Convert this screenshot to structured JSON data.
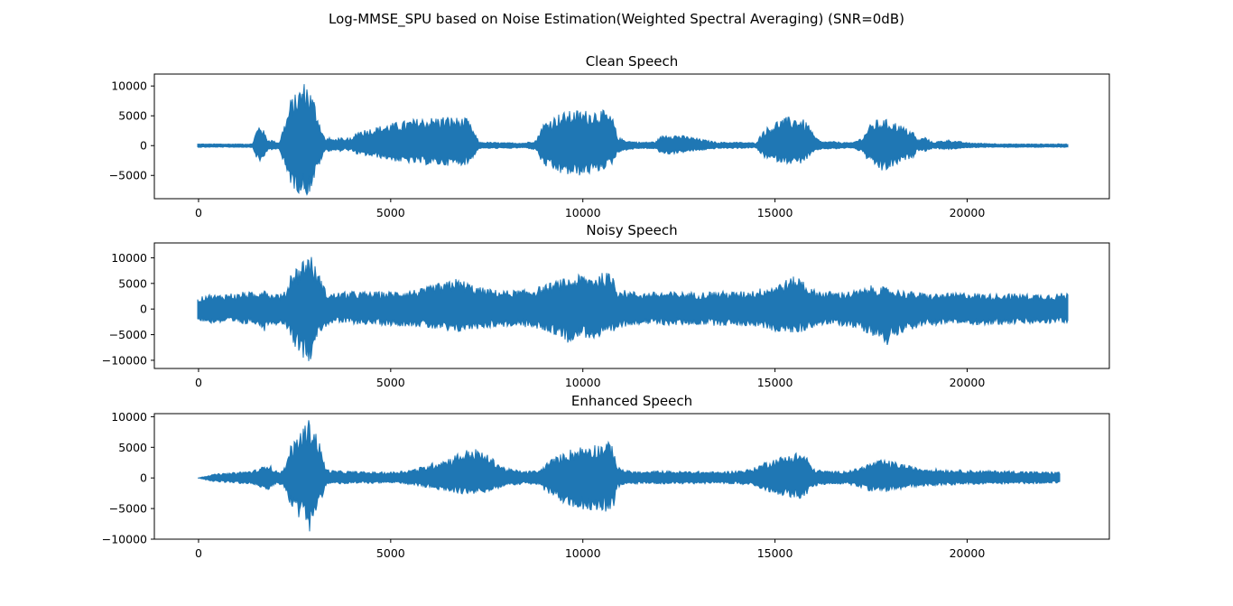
{
  "figure_title": "Log-MMSE_SPU based on Noise Estimation(Weighted Spectral Averaging) (SNR=0dB)",
  "colors": {
    "waveform": "#1f77b4",
    "axes": "#000000",
    "background": "#ffffff"
  },
  "chart_data": [
    {
      "type": "line",
      "title": "Clean Speech",
      "xlabel": "",
      "ylabel": "",
      "xlim": [
        -1150,
        23700
      ],
      "ylim": [
        -8900,
        12000
      ],
      "xticks": [
        0,
        5000,
        10000,
        15000,
        20000
      ],
      "yticks": [
        -5000,
        0,
        5000,
        10000
      ],
      "grid": false,
      "n_samples": 22600,
      "envelope": {
        "x": [
          0,
          1400,
          1500,
          1600,
          1700,
          1800,
          1900,
          2000,
          2100,
          2200,
          2300,
          2400,
          2500,
          2600,
          2700,
          2800,
          2900,
          3000,
          3100,
          3200,
          3300,
          3400,
          3500,
          3700,
          3800,
          3900,
          4000,
          4100,
          4500,
          4800,
          5000,
          5200,
          5500,
          5800,
          6100,
          6400,
          6700,
          7000,
          7200,
          7300,
          7500,
          8000,
          8500,
          8800,
          8900,
          9000,
          9200,
          9400,
          9600,
          9800,
          10000,
          10200,
          10400,
          10600,
          10800,
          10900,
          11000,
          11200,
          11500,
          11900,
          12000,
          12200,
          12500,
          12800,
          13000,
          13500,
          14000,
          14500,
          14600,
          14700,
          14900,
          15100,
          15300,
          15500,
          15700,
          15900,
          16000,
          16200,
          16500,
          17000,
          17300,
          17400,
          17600,
          17800,
          18000,
          18200,
          18400,
          18600,
          18700,
          18900,
          19100,
          19500,
          20000,
          20500,
          21000,
          21500,
          22000,
          22600
        ],
        "max": [
          300,
          300,
          2500,
          3800,
          2500,
          1000,
          1000,
          700,
          500,
          3000,
          5000,
          8000,
          8500,
          9500,
          10500,
          11000,
          9500,
          8000,
          5500,
          3000,
          1000,
          1500,
          1000,
          1500,
          800,
          1500,
          1000,
          2500,
          3000,
          3500,
          3800,
          4000,
          4400,
          4700,
          4800,
          5000,
          4800,
          4600,
          2000,
          600,
          600,
          500,
          500,
          1000,
          3000,
          4000,
          4800,
          5500,
          5800,
          6000,
          6000,
          6000,
          6200,
          5800,
          4500,
          1500,
          1200,
          800,
          600,
          700,
          1500,
          2000,
          1800,
          1500,
          1200,
          600,
          600,
          500,
          1500,
          2800,
          3500,
          4500,
          4800,
          4900,
          4600,
          3500,
          1800,
          700,
          700,
          500,
          1500,
          3000,
          4300,
          4500,
          4300,
          3800,
          3000,
          2400,
          1000,
          1500,
          600,
          1000,
          500,
          400,
          300,
          300,
          300,
          300
        ],
        "min": [
          -300,
          -300,
          -2000,
          -3000,
          -2000,
          -800,
          -800,
          -600,
          -500,
          -3000,
          -5000,
          -6500,
          -7500,
          -8000,
          -7800,
          -8500,
          -8000,
          -6000,
          -4000,
          -2500,
          -800,
          -1000,
          -800,
          -1000,
          -600,
          -1000,
          -800,
          -1500,
          -1900,
          -2200,
          -2500,
          -2800,
          -3000,
          -3200,
          -3300,
          -3400,
          -3300,
          -3300,
          -1500,
          -500,
          -500,
          -500,
          -400,
          -800,
          -2500,
          -3500,
          -4200,
          -4800,
          -5000,
          -5200,
          -5000,
          -4800,
          -4500,
          -3800,
          -3000,
          -1200,
          -1000,
          -700,
          -500,
          -600,
          -1200,
          -1500,
          -1300,
          -1000,
          -900,
          -500,
          -500,
          -400,
          -1200,
          -2000,
          -2500,
          -2800,
          -3000,
          -3200,
          -3000,
          -2000,
          -1200,
          -600,
          -600,
          -400,
          -1200,
          -2500,
          -3500,
          -4500,
          -4000,
          -3200,
          -2500,
          -2000,
          -800,
          -1000,
          -500,
          -700,
          -400,
          -300,
          -300,
          -300,
          -300,
          -300
        ]
      }
    },
    {
      "type": "line",
      "title": "Noisy Speech",
      "xlabel": "",
      "ylabel": "",
      "xlim": [
        -1150,
        23700
      ],
      "ylim": [
        -11600,
        12900
      ],
      "xticks": [
        0,
        5000,
        10000,
        15000,
        20000
      ],
      "yticks": [
        -10000,
        -5000,
        0,
        5000,
        10000
      ],
      "grid": false,
      "n_samples": 22600,
      "envelope": {
        "x": [
          0,
          200,
          500,
          800,
          1000,
          1200,
          1400,
          1500,
          1600,
          1700,
          1800,
          1900,
          2000,
          2200,
          2300,
          2400,
          2500,
          2600,
          2700,
          2800,
          2900,
          3000,
          3100,
          3200,
          3300,
          3400,
          3600,
          4000,
          4500,
          5000,
          5500,
          5800,
          6000,
          6200,
          6400,
          6600,
          6800,
          7000,
          7200,
          7400,
          7700,
          8000,
          8500,
          8800,
          9000,
          9200,
          9400,
          9600,
          9800,
          10000,
          10200,
          10400,
          10600,
          10800,
          10900,
          11200,
          11500,
          12000,
          12500,
          13000,
          13500,
          14000,
          14500,
          14700,
          14900,
          15100,
          15300,
          15500,
          15700,
          15900,
          16100,
          16400,
          16700,
          17000,
          17300,
          17500,
          17700,
          17900,
          18100,
          18400,
          18600,
          18800,
          19000,
          19500,
          20000,
          20500,
          21000,
          21500,
          22000,
          22600
        ],
        "max": [
          2000,
          3000,
          2800,
          3200,
          3000,
          3500,
          3300,
          3000,
          4000,
          4700,
          3600,
          3000,
          3200,
          3000,
          4200,
          7500,
          8200,
          8500,
          9800,
          10500,
          11500,
          9000,
          7500,
          6000,
          3800,
          3000,
          3300,
          3500,
          3400,
          3500,
          3800,
          4000,
          4500,
          5100,
          5000,
          6200,
          5800,
          5400,
          4500,
          4200,
          3800,
          3700,
          3800,
          4300,
          4700,
          5300,
          5800,
          6100,
          6500,
          6900,
          6600,
          7000,
          7200,
          6800,
          4000,
          3600,
          3300,
          3400,
          3400,
          3300,
          3600,
          3400,
          3800,
          4300,
          4600,
          5200,
          5800,
          6400,
          6300,
          4200,
          3700,
          3500,
          3400,
          3600,
          4000,
          4600,
          4500,
          4200,
          4000,
          3600,
          3400,
          3200,
          3000,
          3100,
          3300,
          3000,
          3100,
          3000,
          3000,
          3200
        ],
        "min": [
          -2200,
          -2800,
          -2800,
          -2700,
          -3000,
          -3100,
          -2800,
          -3000,
          -3600,
          -4500,
          -3200,
          -3000,
          -3100,
          -3000,
          -3800,
          -5400,
          -7400,
          -8000,
          -10000,
          -9500,
          -10500,
          -7000,
          -5400,
          -4300,
          -3600,
          -3000,
          -2800,
          -3000,
          -3100,
          -3300,
          -3400,
          -3500,
          -3900,
          -4100,
          -4300,
          -5100,
          -4500,
          -4200,
          -4000,
          -3800,
          -3600,
          -3500,
          -3600,
          -4000,
          -4200,
          -5000,
          -5400,
          -6600,
          -5800,
          -5500,
          -5900,
          -6000,
          -5400,
          -5000,
          -4000,
          -3200,
          -3000,
          -3200,
          -3200,
          -3100,
          -3300,
          -3200,
          -3500,
          -3800,
          -4200,
          -4600,
          -4700,
          -4800,
          -4600,
          -3800,
          -3300,
          -3100,
          -3300,
          -3600,
          -4400,
          -5000,
          -6000,
          -7300,
          -5400,
          -4300,
          -4000,
          -3600,
          -3300,
          -3000,
          -3000,
          -3200,
          -3000,
          -3000,
          -2900,
          -2800
        ]
      }
    },
    {
      "type": "line",
      "title": "Enhanced Speech",
      "xlabel": "",
      "ylabel": "",
      "xlim": [
        -1150,
        23700
      ],
      "ylim": [
        -10000,
        10500
      ],
      "xticks": [
        0,
        5000,
        10000,
        15000,
        20000
      ],
      "yticks": [
        -10000,
        -5000,
        0,
        5000,
        10000
      ],
      "grid": false,
      "n_samples": 22400,
      "envelope": {
        "x": [
          0,
          100,
          300,
          500,
          800,
          1000,
          1200,
          1400,
          1600,
          1700,
          1800,
          1900,
          2000,
          2200,
          2300,
          2400,
          2500,
          2600,
          2700,
          2800,
          2900,
          3000,
          3100,
          3200,
          3300,
          3400,
          3600,
          4000,
          4500,
          5000,
          5300,
          5600,
          5900,
          6200,
          6500,
          6800,
          7000,
          7200,
          7400,
          7700,
          8000,
          8500,
          8900,
          9000,
          9200,
          9400,
          9600,
          9800,
          10000,
          10200,
          10400,
          10600,
          10800,
          10900,
          11200,
          11600,
          12000,
          12500,
          13000,
          13500,
          14000,
          14400,
          14600,
          14800,
          15000,
          15200,
          15400,
          15600,
          15800,
          16000,
          16300,
          16600,
          17000,
          17300,
          17500,
          17800,
          18000,
          18300,
          18600,
          19000,
          19500,
          20000,
          20500,
          21000,
          21500,
          22000,
          22400
        ],
        "max": [
          0,
          200,
          500,
          700,
          800,
          1000,
          1100,
          1200,
          1600,
          2000,
          2700,
          1800,
          1200,
          1200,
          3000,
          5500,
          6000,
          7500,
          8200,
          9200,
          9800,
          8500,
          7000,
          4500,
          1800,
          1300,
          1200,
          1100,
          1000,
          1000,
          1200,
          1500,
          2000,
          2800,
          3300,
          4300,
          4700,
          4800,
          4300,
          3000,
          1600,
          1100,
          1300,
          2200,
          3200,
          3800,
          4600,
          5000,
          5300,
          5700,
          5600,
          6100,
          5400,
          1800,
          1200,
          1000,
          1200,
          1100,
          1100,
          1000,
          1200,
          1500,
          2200,
          2900,
          3200,
          3600,
          4000,
          4300,
          3800,
          1500,
          1200,
          1100,
          1300,
          2000,
          2600,
          3000,
          2800,
          2400,
          1800,
          1600,
          1400,
          1300,
          1200,
          1200,
          1100,
          1000,
          1000
        ],
        "min": [
          0,
          -200,
          -500,
          -700,
          -800,
          -900,
          -1000,
          -1100,
          -1500,
          -1800,
          -2300,
          -1600,
          -1100,
          -1100,
          -2800,
          -4700,
          -5000,
          -6500,
          -6800,
          -8000,
          -8800,
          -7000,
          -5500,
          -3500,
          -1500,
          -1000,
          -1000,
          -1000,
          -900,
          -900,
          -1000,
          -1200,
          -1600,
          -2000,
          -2200,
          -2600,
          -2700,
          -2800,
          -2500,
          -2000,
          -1300,
          -1000,
          -1200,
          -2200,
          -3000,
          -3800,
          -4600,
          -5000,
          -5300,
          -5200,
          -5400,
          -5600,
          -4800,
          -1600,
          -1100,
          -900,
          -1000,
          -1000,
          -1000,
          -900,
          -1000,
          -1300,
          -1800,
          -2200,
          -2600,
          -2900,
          -3200,
          -3600,
          -3000,
          -1400,
          -1100,
          -1000,
          -1200,
          -1800,
          -2200,
          -2400,
          -2200,
          -1900,
          -1500,
          -1300,
          -1200,
          -1100,
          -1000,
          -1000,
          -1000,
          -900,
          -800
        ]
      }
    }
  ]
}
